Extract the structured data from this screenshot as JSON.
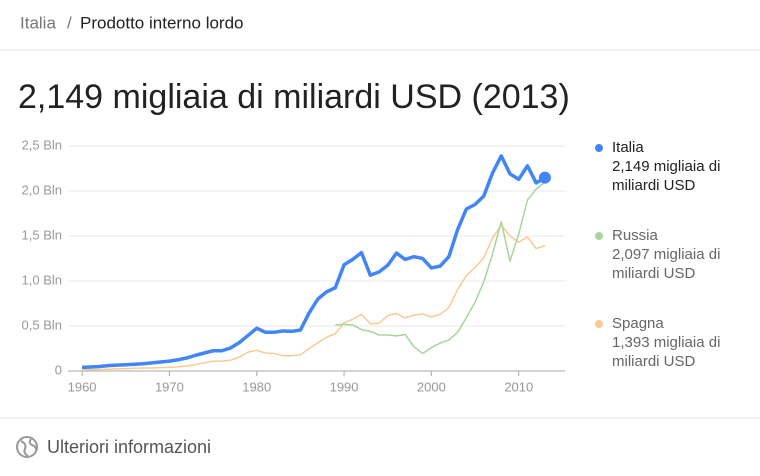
{
  "breadcrumb": [
    "Italia",
    "Prodotto interno lordo"
  ],
  "footer": "Ulteriori informazioni",
  "chart_data": {
    "type": "line",
    "title": "2,149 migliaia di miliardi USD (2013)",
    "x": [
      1960,
      1961,
      1962,
      1963,
      1964,
      1965,
      1966,
      1967,
      1968,
      1969,
      1970,
      1971,
      1972,
      1973,
      1974,
      1975,
      1976,
      1977,
      1978,
      1979,
      1980,
      1981,
      1982,
      1983,
      1984,
      1985,
      1986,
      1987,
      1988,
      1989,
      1990,
      1991,
      1992,
      1993,
      1994,
      1995,
      1996,
      1997,
      1998,
      1999,
      2000,
      2001,
      2002,
      2003,
      2004,
      2005,
      2006,
      2007,
      2008,
      2009,
      2010,
      2011,
      2012,
      2013
    ],
    "xlim": [
      1957.7,
      2015.3
    ],
    "xticks": [
      1960,
      1970,
      1980,
      1990,
      2000,
      2010
    ],
    "ylim": [
      0,
      2.5
    ],
    "yticks": [
      0,
      {
        "value": 0.5,
        "label": "0,5 Bln"
      },
      {
        "value": 1.0,
        "label": "1,0 Bln"
      },
      {
        "value": 1.5,
        "label": "1,5 Bln"
      },
      {
        "value": 2.0,
        "label": "2,0 Bln"
      },
      {
        "value": 2.5,
        "label": "2,5 Bln"
      }
    ],
    "grid": true,
    "legend": "right",
    "series": [
      {
        "name": "Italia",
        "detail": "2,149 migliaia di miliardi USD",
        "color": "#4285f4",
        "values": [
          0.04,
          0.045,
          0.05,
          0.06,
          0.065,
          0.07,
          0.075,
          0.08,
          0.09,
          0.1,
          0.11,
          0.125,
          0.145,
          0.175,
          0.2,
          0.225,
          0.225,
          0.255,
          0.315,
          0.395,
          0.475,
          0.43,
          0.43,
          0.445,
          0.44,
          0.455,
          0.645,
          0.8,
          0.88,
          0.925,
          1.18,
          1.24,
          1.315,
          1.065,
          1.1,
          1.175,
          1.31,
          1.24,
          1.27,
          1.25,
          1.145,
          1.165,
          1.27,
          1.57,
          1.8,
          1.85,
          1.945,
          2.2,
          2.39,
          2.19,
          2.13,
          2.28,
          2.09,
          2.149
        ]
      },
      {
        "name": "Russia",
        "detail": "2,097 migliaia di miliardi USD",
        "color": "#a8d59c",
        "values": [
          null,
          null,
          null,
          null,
          null,
          null,
          null,
          null,
          null,
          null,
          null,
          null,
          null,
          null,
          null,
          null,
          null,
          null,
          null,
          null,
          null,
          null,
          null,
          null,
          null,
          null,
          null,
          null,
          null,
          0.51,
          0.52,
          0.51,
          0.46,
          0.44,
          0.4,
          0.4,
          0.39,
          0.405,
          0.27,
          0.195,
          0.26,
          0.31,
          0.345,
          0.43,
          0.59,
          0.765,
          0.99,
          1.3,
          1.66,
          1.22,
          1.52,
          1.9,
          2.02,
          2.097
        ]
      },
      {
        "name": "Spagna",
        "detail": "1,393 migliaia di miliardi USD",
        "color": "#f9ca92",
        "values": [
          0.012,
          0.014,
          0.016,
          0.02,
          0.024,
          0.026,
          0.03,
          0.034,
          0.034,
          0.038,
          0.04,
          0.046,
          0.056,
          0.072,
          0.09,
          0.11,
          0.11,
          0.12,
          0.155,
          0.21,
          0.23,
          0.2,
          0.195,
          0.17,
          0.17,
          0.18,
          0.25,
          0.315,
          0.375,
          0.415,
          0.535,
          0.575,
          0.63,
          0.525,
          0.53,
          0.615,
          0.64,
          0.59,
          0.62,
          0.635,
          0.6,
          0.63,
          0.705,
          0.905,
          1.06,
          1.15,
          1.26,
          1.475,
          1.625,
          1.5,
          1.43,
          1.49,
          1.36,
          1.393
        ]
      }
    ]
  }
}
